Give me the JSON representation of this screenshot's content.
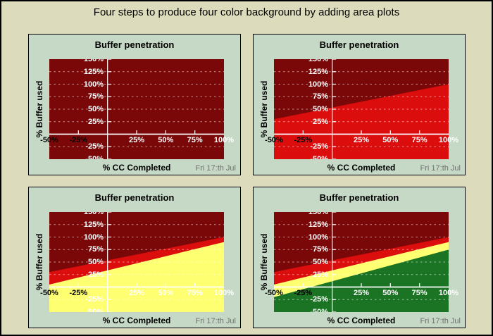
{
  "figure": {
    "title": "Four steps to produce four color background by adding area plots",
    "background": "#DCDCBC",
    "border_color": "#000000"
  },
  "panel": {
    "background": "#C6D9C6",
    "border_color": "#000000",
    "grid_color": "rgba(255,255,255,0.55)",
    "axis_color": "#FFFFFF",
    "date_color": "#707070"
  },
  "chart_data": [
    {
      "type": "area",
      "title": "Buffer penetration",
      "xlabel": "% CC Completed",
      "ylabel": "% Buffer used",
      "annotation": "Fri 17:th Jul",
      "xlim": [
        -50,
        100
      ],
      "ylim": [
        -50,
        150
      ],
      "x_ticks": [
        {
          "value": -50,
          "label": "-50%",
          "color": "#000000"
        },
        {
          "value": -25,
          "label": "-25%",
          "color": "#000000"
        },
        {
          "value": 25,
          "label": "25%",
          "color": "#FFFFFF"
        },
        {
          "value": 50,
          "label": "50%",
          "color": "#FFFFFF"
        },
        {
          "value": 75,
          "label": "75%",
          "color": "#FFFFFF"
        },
        {
          "value": 100,
          "label": "100%",
          "color": "#FFFFFF"
        }
      ],
      "y_ticks": [
        {
          "value": 150,
          "label": "150%"
        },
        {
          "value": 125,
          "label": "125%"
        },
        {
          "value": 100,
          "label": "100%"
        },
        {
          "value": 75,
          "label": "75%"
        },
        {
          "value": 50,
          "label": "50%"
        },
        {
          "value": 25,
          "label": "25%"
        },
        {
          "value": -25,
          "label": "-25%"
        },
        {
          "value": -50,
          "label": "-50%"
        }
      ],
      "background_zone": {
        "name": "darkred",
        "color": "#7B0808"
      },
      "areas": []
    },
    {
      "type": "area",
      "title": "Buffer penetration",
      "xlabel": "% CC Completed",
      "ylabel": "% Buffer used",
      "annotation": "Fri 17:th Jul",
      "xlim": [
        -50,
        100
      ],
      "ylim": [
        -50,
        150
      ],
      "x_ticks": [
        {
          "value": -50,
          "label": "-50%",
          "color": "#000000"
        },
        {
          "value": -25,
          "label": "-25%",
          "color": "#000000"
        },
        {
          "value": 25,
          "label": "25%",
          "color": "#FFFFFF"
        },
        {
          "value": 50,
          "label": "50%",
          "color": "#FFFFFF"
        },
        {
          "value": 75,
          "label": "75%",
          "color": "#FFFFFF"
        },
        {
          "value": 100,
          "label": "100%",
          "color": "#FFFFFF"
        }
      ],
      "y_ticks": [
        {
          "value": 150,
          "label": "150%"
        },
        {
          "value": 125,
          "label": "125%"
        },
        {
          "value": 100,
          "label": "100%"
        },
        {
          "value": 75,
          "label": "75%"
        },
        {
          "value": 50,
          "label": "50%"
        },
        {
          "value": 25,
          "label": "25%"
        },
        {
          "value": -25,
          "label": "-25%"
        },
        {
          "value": -50,
          "label": "-50%"
        }
      ],
      "background_zone": {
        "name": "darkred",
        "color": "#7B0808"
      },
      "areas": [
        {
          "name": "red",
          "color": "#DC0D0D",
          "x": [
            -50,
            100
          ],
          "y": [
            30,
            100
          ]
        }
      ]
    },
    {
      "type": "area",
      "title": "Buffer penetration",
      "xlabel": "% CC Completed",
      "ylabel": "% Buffer used",
      "annotation": "Fri 17:th Jul",
      "xlim": [
        -50,
        100
      ],
      "ylim": [
        -50,
        150
      ],
      "x_ticks": [
        {
          "value": -50,
          "label": "-50%",
          "color": "#000000"
        },
        {
          "value": -25,
          "label": "-25%",
          "color": "#000000"
        },
        {
          "value": 25,
          "label": "25%",
          "color": "#FFFFFF"
        },
        {
          "value": 50,
          "label": "50%",
          "color": "#FFFFFF"
        },
        {
          "value": 75,
          "label": "75%",
          "color": "#FFFFFF"
        },
        {
          "value": 100,
          "label": "100%",
          "color": "#FFFFFF"
        }
      ],
      "y_ticks": [
        {
          "value": 150,
          "label": "150%"
        },
        {
          "value": 125,
          "label": "125%"
        },
        {
          "value": 100,
          "label": "100%"
        },
        {
          "value": 75,
          "label": "75%"
        },
        {
          "value": 50,
          "label": "50%"
        },
        {
          "value": 25,
          "label": "25%"
        },
        {
          "value": -25,
          "label": "-25%"
        },
        {
          "value": -50,
          "label": "-50%"
        }
      ],
      "background_zone": {
        "name": "darkred",
        "color": "#7B0808"
      },
      "areas": [
        {
          "name": "red",
          "color": "#DC0D0D",
          "x": [
            -50,
            100
          ],
          "y": [
            30,
            100
          ]
        },
        {
          "name": "yellow",
          "color": "#FFFF72",
          "x": [
            -50,
            100
          ],
          "y": [
            5,
            90
          ]
        }
      ]
    },
    {
      "type": "area",
      "title": "Buffer penetration",
      "xlabel": "% CC Completed",
      "ylabel": "% Buffer used",
      "annotation": "Fri 17:th Jul",
      "xlim": [
        -50,
        100
      ],
      "ylim": [
        -50,
        150
      ],
      "x_ticks": [
        {
          "value": -50,
          "label": "-50%",
          "color": "#000000"
        },
        {
          "value": -25,
          "label": "-25%",
          "color": "#000000"
        },
        {
          "value": 25,
          "label": "25%",
          "color": "#FFFFFF"
        },
        {
          "value": 50,
          "label": "50%",
          "color": "#FFFFFF"
        },
        {
          "value": 75,
          "label": "75%",
          "color": "#FFFFFF"
        },
        {
          "value": 100,
          "label": "100%",
          "color": "#FFFFFF"
        }
      ],
      "y_ticks": [
        {
          "value": 150,
          "label": "150%"
        },
        {
          "value": 125,
          "label": "125%"
        },
        {
          "value": 100,
          "label": "100%"
        },
        {
          "value": 75,
          "label": "75%"
        },
        {
          "value": 50,
          "label": "50%"
        },
        {
          "value": 25,
          "label": "25%"
        },
        {
          "value": -25,
          "label": "-25%"
        },
        {
          "value": -50,
          "label": "-50%"
        }
      ],
      "background_zone": {
        "name": "darkred",
        "color": "#7B0808"
      },
      "areas": [
        {
          "name": "red",
          "color": "#DC0D0D",
          "x": [
            -50,
            100
          ],
          "y": [
            30,
            100
          ]
        },
        {
          "name": "yellow",
          "color": "#FFFF72",
          "x": [
            -50,
            100
          ],
          "y": [
            5,
            90
          ]
        },
        {
          "name": "green",
          "color": "#1B7423",
          "x": [
            -50,
            100
          ],
          "y": [
            -20,
            75
          ]
        }
      ]
    }
  ]
}
